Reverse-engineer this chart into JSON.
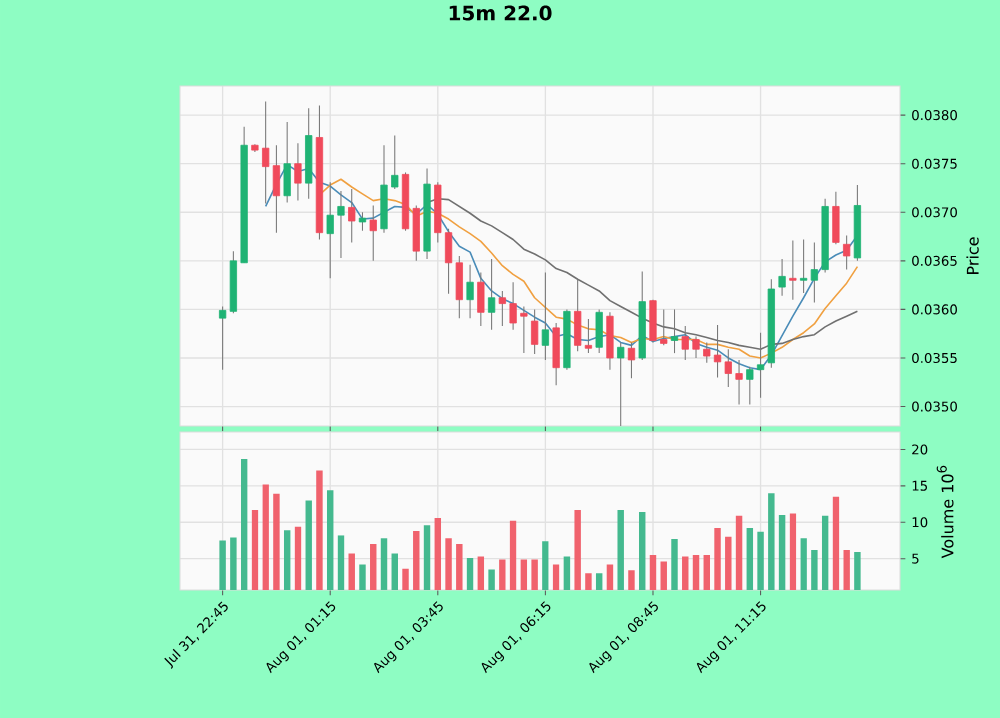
{
  "chart_data": [
    {
      "type": "candlestick",
      "title": "15m 22.0",
      "ylabel": "Price",
      "grid": true,
      "tick_labels": "y",
      "categories": [
        null,
        null,
        null,
        null,
        null,
        null,
        null,
        null,
        null,
        null,
        null,
        null,
        null,
        null,
        null,
        null,
        null,
        null,
        null,
        null,
        null,
        null,
        null,
        null,
        null,
        null,
        null,
        null,
        null,
        null,
        null,
        null,
        null,
        null,
        null,
        null,
        null,
        null,
        null,
        null,
        null,
        null,
        null,
        null,
        null,
        null,
        null,
        null,
        null,
        null,
        null,
        null,
        null,
        null,
        null,
        null,
        null,
        null,
        null,
        null
      ],
      "ylim": [
        0.0348,
        0.0383
      ],
      "yticks": [
        {
          "value": 0.035,
          "label": "0.0350"
        },
        {
          "value": 0.0355,
          "label": "0.0355"
        },
        {
          "value": 0.036,
          "label": "0.0360"
        },
        {
          "value": 0.0365,
          "label": "0.0365"
        },
        {
          "value": 0.037,
          "label": "0.0370"
        },
        {
          "value": 0.0375,
          "label": "0.0375"
        },
        {
          "value": 0.038,
          "label": "0.0380"
        }
      ],
      "ohlc": [
        [
          0.03591,
          0.03603,
          0.03538,
          0.03599
        ],
        [
          0.03598,
          0.0366,
          0.03596,
          0.0365
        ],
        [
          0.03648,
          0.03788,
          0.03648,
          0.03769
        ],
        [
          0.03769,
          0.0377,
          0.03762,
          0.03764
        ],
        [
          0.03766,
          0.03814,
          0.03709,
          0.03747
        ],
        [
          0.03748,
          0.03769,
          0.03679,
          0.03717
        ],
        [
          0.03717,
          0.03793,
          0.0371,
          0.0375
        ],
        [
          0.0375,
          0.03771,
          0.03712,
          0.0373
        ],
        [
          0.0373,
          0.03807,
          0.03714,
          0.03779
        ],
        [
          0.03777,
          0.0381,
          0.03672,
          0.03679
        ],
        [
          0.03678,
          0.03731,
          0.03632,
          0.03697
        ],
        [
          0.03697,
          0.03722,
          0.03653,
          0.03706
        ],
        [
          0.03705,
          0.03724,
          0.03669,
          0.03691
        ],
        [
          0.0369,
          0.037,
          0.03681,
          0.03694
        ],
        [
          0.03692,
          0.03707,
          0.0365,
          0.03681
        ],
        [
          0.03683,
          0.03769,
          0.03679,
          0.03728
        ],
        [
          0.03726,
          0.03779,
          0.03724,
          0.03738
        ],
        [
          0.03739,
          0.03741,
          0.03681,
          0.03683
        ],
        [
          0.03704,
          0.03707,
          0.0365,
          0.0366
        ],
        [
          0.0366,
          0.03745,
          0.03652,
          0.03729
        ],
        [
          0.03728,
          0.03731,
          0.03669,
          0.03679
        ],
        [
          0.03679,
          0.03683,
          0.03616,
          0.03648
        ],
        [
          0.03648,
          0.03655,
          0.03591,
          0.0361
        ],
        [
          0.0361,
          0.03646,
          0.03591,
          0.03628
        ],
        [
          0.03628,
          0.03638,
          0.03583,
          0.03597
        ],
        [
          0.03597,
          0.03652,
          0.03579,
          0.03612
        ],
        [
          0.03612,
          0.03619,
          0.03583,
          0.03606
        ],
        [
          0.03606,
          0.03628,
          0.03579,
          0.03586
        ],
        [
          0.03596,
          0.03603,
          0.03555,
          0.03593
        ],
        [
          0.03588,
          0.036,
          0.03554,
          0.03564
        ],
        [
          0.03563,
          0.03638,
          0.03548,
          0.03579
        ],
        [
          0.03581,
          0.03586,
          0.03522,
          0.0354
        ],
        [
          0.0354,
          0.036,
          0.03538,
          0.03598
        ],
        [
          0.03598,
          0.03631,
          0.03557,
          0.03563
        ],
        [
          0.03563,
          0.0359,
          0.03555,
          0.0356
        ],
        [
          0.03561,
          0.036,
          0.03555,
          0.03597
        ],
        [
          0.03593,
          0.03597,
          0.03538,
          0.0355
        ],
        [
          0.0355,
          0.03566,
          0.03476,
          0.03561
        ],
        [
          0.0356,
          0.03566,
          0.03529,
          0.03548
        ],
        [
          0.0355,
          0.03639,
          0.03548,
          0.03608
        ],
        [
          0.03609,
          0.0361,
          0.03566,
          0.03568
        ],
        [
          0.03569,
          0.036,
          0.03563,
          0.03565
        ],
        [
          0.03568,
          0.036,
          0.03555,
          0.03572
        ],
        [
          0.03572,
          0.03583,
          0.03548,
          0.03559
        ],
        [
          0.03569,
          0.03572,
          0.0355,
          0.03559
        ],
        [
          0.03559,
          0.03566,
          0.03545,
          0.03552
        ],
        [
          0.03553,
          0.03584,
          0.0353,
          0.03546
        ],
        [
          0.03546,
          0.03559,
          0.0352,
          0.03534
        ],
        [
          0.03534,
          0.03548,
          0.03502,
          0.03528
        ],
        [
          0.03528,
          0.03541,
          0.03502,
          0.03538
        ],
        [
          0.03538,
          0.03576,
          0.03509,
          0.03543
        ],
        [
          0.03545,
          0.03631,
          0.0354,
          0.03621
        ],
        [
          0.03623,
          0.03652,
          0.03614,
          0.03634
        ],
        [
          0.03632,
          0.03671,
          0.0361,
          0.0363
        ],
        [
          0.0363,
          0.03672,
          0.03617,
          0.03632
        ],
        [
          0.0363,
          0.03669,
          0.03607,
          0.03641
        ],
        [
          0.03641,
          0.03714,
          0.03638,
          0.03706
        ],
        [
          0.03706,
          0.03721,
          0.03667,
          0.03669
        ],
        [
          0.03667,
          0.03676,
          0.03641,
          0.03655
        ],
        [
          0.03653,
          0.03728,
          0.0365,
          0.03707
        ]
      ],
      "colors": [
        "#1fb374",
        "#1fb374",
        "#1fb374",
        "#f04a5b",
        "#f04a5b",
        "#f04a5b",
        "#1fb374",
        "#f04a5b",
        "#1fb374",
        "#f04a5b",
        "#1fb374",
        "#1fb374",
        "#f04a5b",
        "#1fb374",
        "#f04a5b",
        "#1fb374",
        "#1fb374",
        "#f04a5b",
        "#f04a5b",
        "#1fb374",
        "#f04a5b",
        "#f04a5b",
        "#f04a5b",
        "#1fb374",
        "#f04a5b",
        "#1fb374",
        "#f04a5b",
        "#f04a5b",
        "#f04a5b",
        "#f04a5b",
        "#1fb374",
        "#f04a5b",
        "#1fb374",
        "#f04a5b",
        "#f04a5b",
        "#1fb374",
        "#f04a5b",
        "#1fb374",
        "#f04a5b",
        "#1fb374",
        "#f04a5b",
        "#f04a5b",
        "#1fb374",
        "#f04a5b",
        "#f04a5b",
        "#f04a5b",
        "#f04a5b",
        "#f04a5b",
        "#f04a5b",
        "#1fb374",
        "#1fb374",
        "#1fb374",
        "#1fb374",
        "#f04a5b",
        "#1fb374",
        "#1fb374",
        "#1fb374",
        "#f04a5b",
        "#f04a5b",
        "#1fb374"
      ],
      "series": [
        {
          "type": "line",
          "color": "#4a8cb8",
          "values": [
            null,
            null,
            null,
            null,
            0.03706,
            0.03729,
            0.03749,
            0.03742,
            0.03745,
            0.03731,
            0.03727,
            0.03718,
            0.0371,
            0.03693,
            0.03694,
            0.037,
            0.03706,
            0.03705,
            0.03698,
            0.03708,
            0.03698,
            0.0368,
            0.03665,
            0.03659,
            0.03632,
            0.03619,
            0.03611,
            0.03606,
            0.03599,
            0.03592,
            0.03586,
            0.03572,
            0.03575,
            0.03569,
            0.03568,
            0.03572,
            0.03574,
            0.03566,
            0.03563,
            0.03573,
            0.03567,
            0.0357,
            0.03572,
            0.03574,
            0.03565,
            0.03561,
            0.03558,
            0.0355,
            0.03544,
            0.0354,
            0.03538,
            0.03553,
            0.03573,
            0.03593,
            0.03612,
            0.03632,
            0.03649,
            0.03656,
            0.03661,
            0.03676
          ]
        },
        {
          "type": "line",
          "color": "#f0a040",
          "values": [
            null,
            null,
            null,
            null,
            null,
            null,
            null,
            null,
            null,
            0.03718,
            0.03728,
            0.03734,
            0.03726,
            0.03719,
            0.03712,
            0.03714,
            0.03712,
            0.03708,
            0.03696,
            0.03701,
            0.03699,
            0.03693,
            0.03685,
            0.03678,
            0.0367,
            0.03658,
            0.03645,
            0.03636,
            0.03629,
            0.03612,
            0.03602,
            0.03592,
            0.0359,
            0.03584,
            0.0358,
            0.03579,
            0.03573,
            0.03571,
            0.03566,
            0.0357,
            0.03569,
            0.03572,
            0.03569,
            0.03569,
            0.03569,
            0.03564,
            0.03564,
            0.03561,
            0.03559,
            0.03552,
            0.0355,
            0.03555,
            0.03561,
            0.03569,
            0.03576,
            0.03585,
            0.03601,
            0.03614,
            0.03627,
            0.03644
          ]
        },
        {
          "type": "line",
          "color": "#707070",
          "values": [
            null,
            null,
            null,
            null,
            null,
            null,
            null,
            null,
            null,
            null,
            null,
            null,
            null,
            null,
            null,
            null,
            null,
            null,
            null,
            0.0371,
            0.03714,
            0.03713,
            0.03706,
            0.03699,
            0.03691,
            0.03686,
            0.03679,
            0.03672,
            0.03662,
            0.03657,
            0.03651,
            0.03642,
            0.03638,
            0.03631,
            0.03625,
            0.03619,
            0.03609,
            0.03603,
            0.03597,
            0.03591,
            0.03586,
            0.03582,
            0.0358,
            0.03576,
            0.03574,
            0.03571,
            0.03568,
            0.03566,
            0.03563,
            0.03561,
            0.03559,
            0.03564,
            0.03565,
            0.03569,
            0.03572,
            0.03574,
            0.03582,
            0.03588,
            0.03593,
            0.03598
          ]
        }
      ]
    },
    {
      "type": "bar",
      "ylabel": "Volume 10$^{6}$",
      "grid": true,
      "categories": [
        "Jul 31, 22:45",
        null,
        null,
        null,
        null,
        null,
        null,
        null,
        null,
        null,
        "Aug 01, 01:15",
        null,
        null,
        null,
        null,
        null,
        null,
        null,
        null,
        null,
        "Aug 01, 03:45",
        null,
        null,
        null,
        null,
        null,
        null,
        null,
        null,
        null,
        "Aug 01, 06:15",
        null,
        null,
        null,
        null,
        null,
        null,
        null,
        null,
        null,
        "Aug 01, 08:45",
        null,
        null,
        null,
        null,
        null,
        null,
        null,
        null,
        null,
        "Aug 01, 11:15",
        null,
        null,
        null,
        null,
        null,
        null,
        null,
        null,
        null
      ],
      "ylim": [
        0.7,
        22.4
      ],
      "yticks": [
        5,
        10,
        15,
        20
      ],
      "values": [
        7.5,
        7.9,
        18.7,
        11.7,
        15.2,
        13.9,
        8.9,
        9.4,
        13.0,
        17.1,
        14.4,
        8.2,
        5.7,
        4.2,
        7.0,
        7.8,
        5.7,
        3.6,
        8.8,
        9.6,
        10.6,
        7.8,
        7.0,
        5.1,
        5.3,
        3.5,
        4.9,
        10.2,
        4.9,
        4.9,
        7.4,
        4.2,
        5.3,
        11.7,
        3.0,
        3.0,
        4.2,
        11.7,
        3.4,
        11.4,
        5.5,
        4.6,
        7.7,
        5.3,
        5.5,
        5.5,
        9.2,
        8.0,
        10.9,
        9.2,
        8.7,
        14.0,
        11.0,
        11.2,
        7.8,
        6.2,
        10.9,
        13.5,
        6.2,
        5.9
      ],
      "colors": [
        "#44b98f",
        "#44b98f",
        "#44b98f",
        "#f0626d",
        "#f0626d",
        "#f0626d",
        "#44b98f",
        "#f0626d",
        "#44b98f",
        "#f0626d",
        "#44b98f",
        "#44b98f",
        "#f0626d",
        "#44b98f",
        "#f0626d",
        "#44b98f",
        "#44b98f",
        "#f0626d",
        "#f0626d",
        "#44b98f",
        "#f0626d",
        "#f0626d",
        "#f0626d",
        "#44b98f",
        "#f0626d",
        "#44b98f",
        "#f0626d",
        "#f0626d",
        "#f0626d",
        "#f0626d",
        "#44b98f",
        "#f0626d",
        "#44b98f",
        "#f0626d",
        "#f0626d",
        "#44b98f",
        "#f0626d",
        "#44b98f",
        "#f0626d",
        "#44b98f",
        "#f0626d",
        "#f0626d",
        "#44b98f",
        "#f0626d",
        "#f0626d",
        "#f0626d",
        "#f0626d",
        "#f0626d",
        "#f0626d",
        "#44b98f",
        "#44b98f",
        "#44b98f",
        "#44b98f",
        "#f0626d",
        "#44b98f",
        "#44b98f",
        "#44b98f",
        "#f0626d",
        "#f0626d",
        "#44b98f"
      ]
    }
  ]
}
